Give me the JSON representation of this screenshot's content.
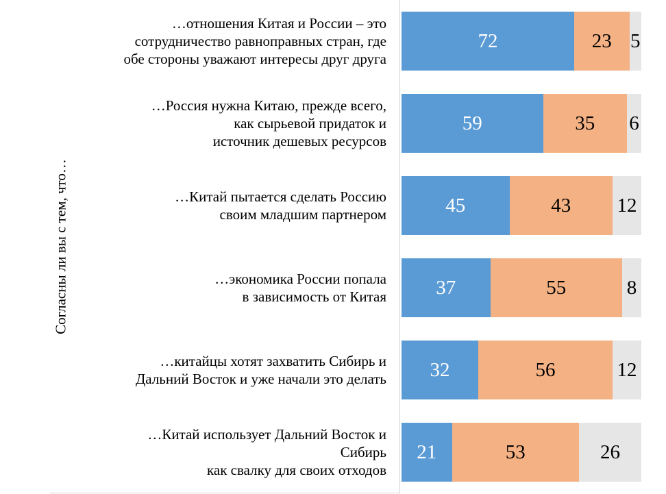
{
  "chart_data": {
    "type": "bar",
    "orientation": "horizontal",
    "stacked": true,
    "ylabel": "Согласны ли вы с тем, что…",
    "xlim": [
      0,
      100
    ],
    "grid": false,
    "legend": "none",
    "categories": [
      "…отношения Китая и России – это\nсотрудничество равноправных стран, где\nобе стороны уважают интересы друг друга",
      "…Россия нужна Китаю, прежде всего,\nкак сырьевой придаток и\nисточник дешевых ресурсов",
      "…Китай пытается сделать Россию\nсвоим младшим партнером",
      "…экономика России попала\nв зависимость от Китая",
      "…китайцы хотят захватить Сибирь и\nДальний Восток и уже начали это делать",
      "…Китай использует Дальний Восток и\nСибирь\nкак свалку для своих отходов"
    ],
    "series": [
      {
        "values": [
          72,
          59,
          45,
          37,
          32,
          21
        ],
        "color": "#5b9bd5",
        "label_color": "#ffffff"
      },
      {
        "values": [
          23,
          35,
          43,
          55,
          56,
          53
        ],
        "color": "#f4b183",
        "label_color": "#000000"
      },
      {
        "values": [
          5,
          6,
          12,
          8,
          12,
          26
        ],
        "color": "#e7e6e6",
        "label_color": "#000000"
      }
    ]
  }
}
